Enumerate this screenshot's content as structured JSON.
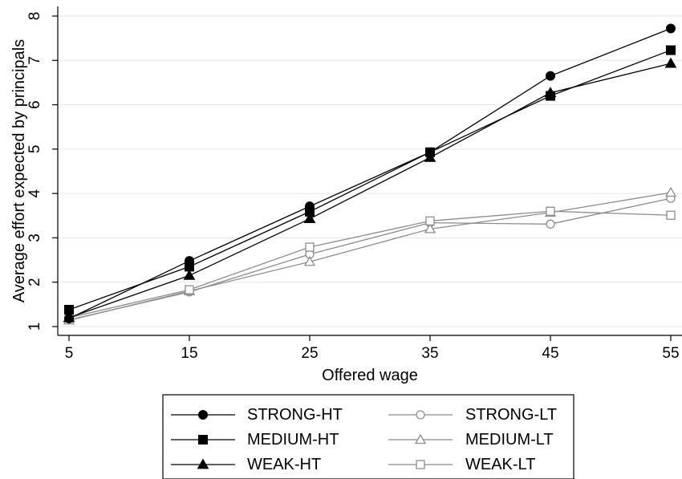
{
  "chart_data": {
    "type": "line",
    "title": "",
    "xlabel": "Offered wage",
    "ylabel": "Average effort expected by principals",
    "x": [
      5,
      15,
      25,
      35,
      45,
      55
    ],
    "xlim": [
      5,
      55
    ],
    "ylim": [
      1,
      8
    ],
    "xticks": [
      "5",
      "15",
      "25",
      "35",
      "45",
      "55"
    ],
    "yticks": [
      "1",
      "2",
      "3",
      "4",
      "5",
      "6",
      "7",
      "8"
    ],
    "grid": "horizontal",
    "legend_position": "bottom",
    "series": [
      {
        "name": "STRONG-HT",
        "values": [
          1.18,
          2.48,
          3.71,
          4.93,
          6.65,
          7.72
        ],
        "color": "#000000",
        "marker": "circle",
        "filled": true
      },
      {
        "name": "MEDIUM-HT",
        "values": [
          1.38,
          2.35,
          3.59,
          4.93,
          6.2,
          7.23
        ],
        "color": "#000000",
        "marker": "square",
        "filled": true
      },
      {
        "name": "WEAK-HT",
        "values": [
          1.2,
          2.15,
          3.43,
          4.81,
          6.27,
          6.93
        ],
        "color": "#000000",
        "marker": "triangle",
        "filled": true
      },
      {
        "name": "STRONG-LT",
        "values": [
          1.15,
          1.78,
          2.63,
          3.34,
          3.31,
          3.89
        ],
        "color": "#8c8c8c",
        "marker": "circle",
        "filled": false
      },
      {
        "name": "MEDIUM-LT",
        "values": [
          1.14,
          1.8,
          2.46,
          3.2,
          3.57,
          4.02
        ],
        "color": "#8c8c8c",
        "marker": "triangle",
        "filled": false
      },
      {
        "name": "WEAK-LT",
        "values": [
          1.2,
          1.83,
          2.79,
          3.38,
          3.6,
          3.51
        ],
        "color": "#8c8c8c",
        "marker": "square",
        "filled": false
      }
    ]
  }
}
